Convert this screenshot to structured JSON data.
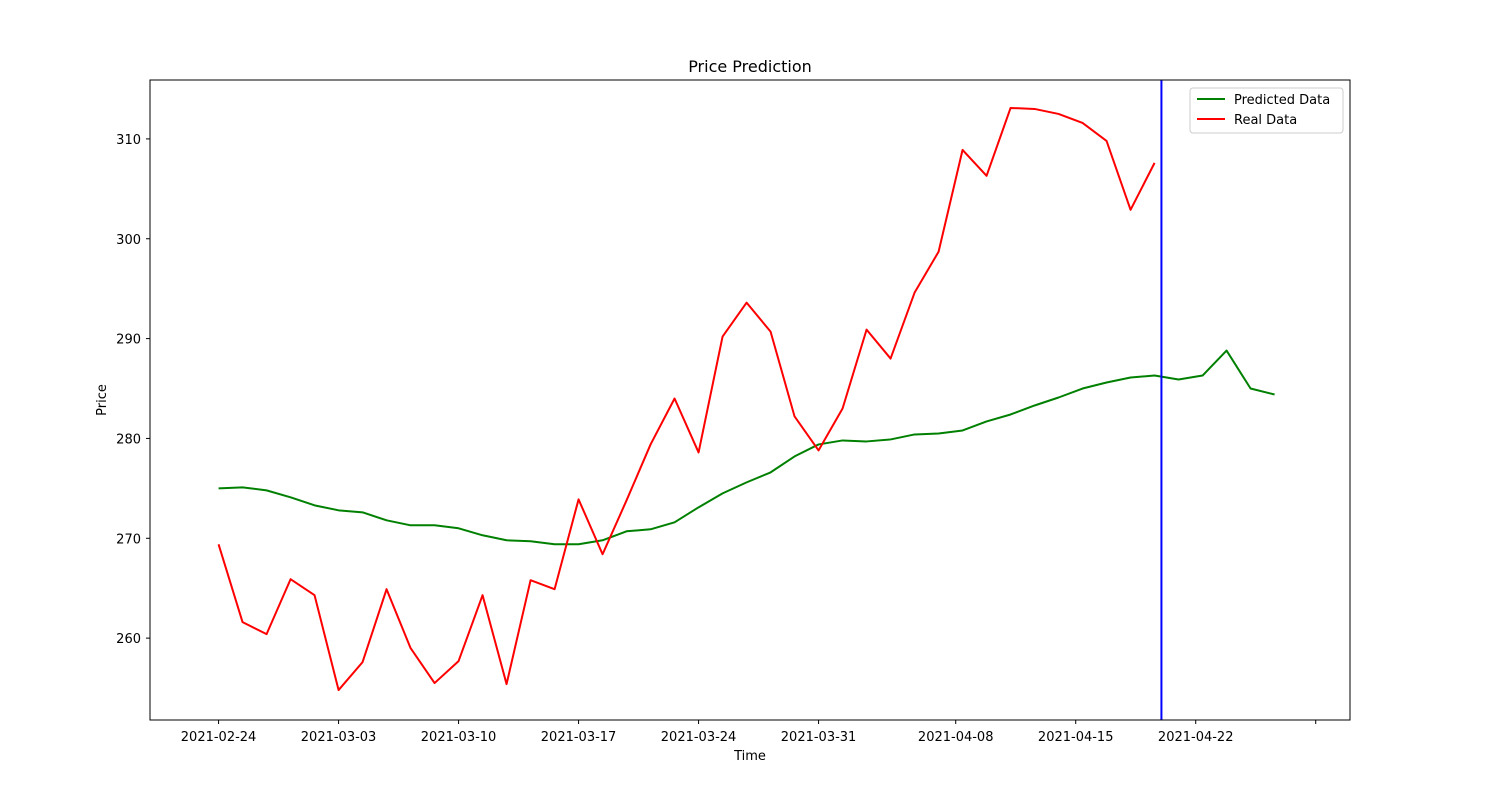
{
  "chart_data": {
    "type": "line",
    "title": "Price Prediction",
    "xlabel": "Time",
    "ylabel": "Price",
    "x_start": "2021-02-24",
    "step_days": 1.4,
    "xlim": [
      "2021-02-20",
      "2021-05-01"
    ],
    "ylim": [
      251.8,
      315.9
    ],
    "x_ticks": [
      {
        "date": "2021-02-24",
        "label": "2021-02-24"
      },
      {
        "date": "2021-03-03",
        "label": "2021-03-03"
      },
      {
        "date": "2021-03-10",
        "label": "2021-03-10"
      },
      {
        "date": "2021-03-17",
        "label": "2021-03-17"
      },
      {
        "date": "2021-03-24",
        "label": "2021-03-24"
      },
      {
        "date": "2021-03-31",
        "label": "2021-03-31"
      },
      {
        "date": "2021-04-08",
        "label": "2021-04-08"
      },
      {
        "date": "2021-04-15",
        "label": "2021-04-15"
      },
      {
        "date": "2021-04-22",
        "label": "2021-04-22"
      },
      {
        "date": "2021-04-29",
        "label": ""
      }
    ],
    "y_ticks": [
      260,
      270,
      280,
      290,
      300,
      310
    ],
    "vline": {
      "date": "2021-04-20",
      "color": "#0000ff"
    },
    "legend_position": "upper right",
    "series": [
      {
        "name": "Predicted Data",
        "color": "#008000",
        "values": [
          275.0,
          275.1,
          274.8,
          274.1,
          273.3,
          272.8,
          272.6,
          271.8,
          271.3,
          271.3,
          271.0,
          270.3,
          269.8,
          269.7,
          269.4,
          269.4,
          269.8,
          270.7,
          270.9,
          271.6,
          273.1,
          274.5,
          275.6,
          276.6,
          278.2,
          279.4,
          279.8,
          279.7,
          279.9,
          280.4,
          280.5,
          280.8,
          281.7,
          282.4,
          283.3,
          284.1,
          285.0,
          285.6,
          286.1,
          286.3,
          285.9,
          286.3,
          288.8,
          285.0,
          284.4
        ]
      },
      {
        "name": "Real Data",
        "color": "#ff0000",
        "values": [
          269.4,
          261.6,
          260.4,
          265.9,
          264.3,
          254.8,
          257.6,
          264.9,
          259.0,
          255.5,
          257.7,
          264.3,
          255.4,
          265.8,
          264.9,
          273.9,
          268.4,
          273.8,
          279.4,
          284.0,
          278.6,
          290.2,
          293.6,
          290.7,
          282.2,
          278.8,
          283.0,
          290.9,
          288.0,
          294.6,
          298.7,
          308.9,
          306.3,
          313.1,
          313.0,
          312.5,
          311.6,
          309.8,
          302.9,
          307.6
        ]
      }
    ]
  }
}
